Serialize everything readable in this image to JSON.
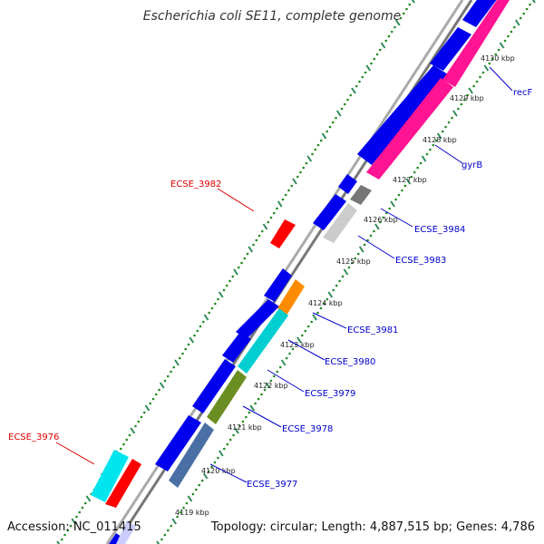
{
  "title": "Escherichia coli SE11, complete genome",
  "accession": "Accession: NC_011415",
  "summary": "Topology: circular; Length: 4,887,515 bp; Genes: 4,786",
  "colors": {
    "backbone": "#999999",
    "tick_dot": "#228b22",
    "tick_dash": "#2e8b57",
    "blue": "#0000ee",
    "magenta": "#ff1493",
    "cyan": "#00e5ee",
    "red": "#ff0000",
    "orange": "#ff8c00",
    "olive": "#6b8e23",
    "gray": "#808080",
    "lightgray": "#cccccc",
    "label_blue": "#0000cc",
    "label_red": "#dd0000"
  },
  "ticks": [
    "4119 kbp",
    "4120 kbp",
    "4121 kbp",
    "4122 kbp",
    "4123 kbp",
    "4124 kbp",
    "4125 kbp",
    "4126 kbp",
    "4127 kbp",
    "4128 kbp",
    "4129 kbp",
    "4130 kbp"
  ],
  "gene_labels": [
    {
      "text": "recF",
      "color": "blue"
    },
    {
      "text": "gyrB",
      "color": "blue"
    },
    {
      "text": "ECSE_3984",
      "color": "blue"
    },
    {
      "text": "ECSE_3983",
      "color": "blue"
    },
    {
      "text": "ECSE_3981",
      "color": "blue"
    },
    {
      "text": "ECSE_3980",
      "color": "blue"
    },
    {
      "text": "ECSE_3979",
      "color": "blue"
    },
    {
      "text": "ECSE_3978",
      "color": "blue"
    },
    {
      "text": "ECSE_3977",
      "color": "blue"
    },
    {
      "text": "ECSE_3982",
      "color": "red"
    },
    {
      "text": "ECSE_3976",
      "color": "red"
    }
  ]
}
